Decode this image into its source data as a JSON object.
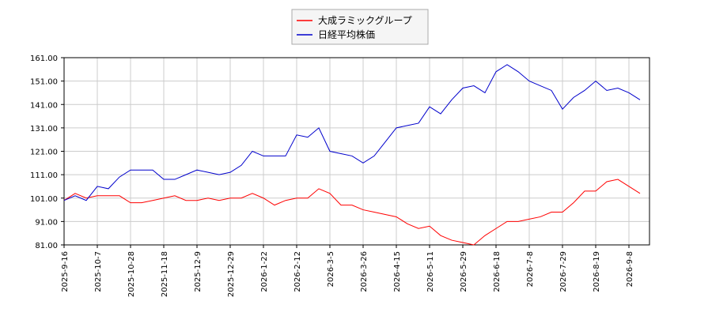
{
  "chart_data": {
    "type": "line",
    "categories": [
      "2025-9-16",
      null,
      null,
      "2025-10-7",
      null,
      null,
      "2025-10-28",
      null,
      null,
      "2025-11-18",
      null,
      null,
      "2025-12-9",
      null,
      null,
      "2025-12-29",
      null,
      null,
      "2026-1-22",
      null,
      null,
      "2026-2-12",
      null,
      null,
      "2026-3-5",
      null,
      null,
      "2026-3-26",
      null,
      null,
      "2026-4-15",
      null,
      null,
      "2026-5-11",
      null,
      null,
      "2026-5-29",
      null,
      null,
      "2026-6-18",
      null,
      null,
      "2026-7-8",
      null,
      null,
      "2026-7-29",
      null,
      null,
      "2026-8-19",
      null,
      null,
      "2026-9-8",
      null
    ],
    "series": [
      {
        "name": "大成ラミックグループ",
        "color": "#ff0000",
        "values": [
          100,
          103,
          101,
          102,
          102,
          102,
          99,
          99,
          100,
          101,
          102,
          100,
          100,
          101,
          100,
          101,
          101,
          103,
          101,
          98,
          100,
          101,
          101,
          105,
          103,
          98,
          98,
          96,
          95,
          94,
          93,
          90,
          88,
          89,
          85,
          83,
          82,
          81,
          85,
          88,
          91,
          91,
          92,
          93,
          95,
          95,
          99,
          104,
          104,
          108,
          109,
          106,
          103
        ]
      },
      {
        "name": "日経平均株価",
        "color": "#0000cc",
        "values": [
          100,
          102,
          100,
          106,
          105,
          110,
          113,
          113,
          113,
          109,
          109,
          111,
          113,
          112,
          111,
          112,
          115,
          121,
          119,
          119,
          119,
          128,
          127,
          131,
          121,
          120,
          119,
          116,
          119,
          125,
          131,
          132,
          133,
          140,
          137,
          143,
          148,
          149,
          146,
          155,
          158,
          155,
          151,
          149,
          147,
          139,
          144,
          147,
          151,
          147,
          148,
          146,
          143
        ]
      }
    ],
    "ylim": [
      81,
      161
    ],
    "yticks": [
      {
        "value": 81,
        "label": "81.00"
      },
      {
        "value": 91,
        "label": "91.00"
      },
      {
        "value": 101,
        "label": "101.00"
      },
      {
        "value": 111,
        "label": "111.00"
      },
      {
        "value": 121,
        "label": "121.00"
      },
      {
        "value": 131,
        "label": "131.00"
      },
      {
        "value": 141,
        "label": "141.00"
      },
      {
        "value": 151,
        "label": "151.00"
      },
      {
        "value": 161,
        "label": "161.00"
      }
    ],
    "grid": true,
    "legend": "top"
  }
}
